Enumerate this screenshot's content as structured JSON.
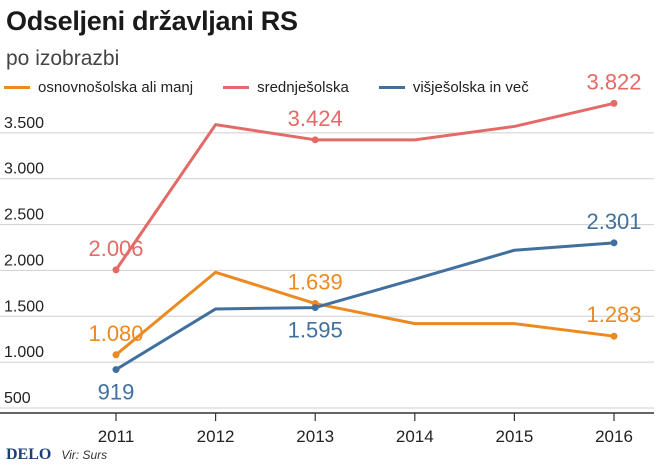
{
  "header": {
    "title": "Odseljeni državljani RS",
    "subtitle": "po izobrazbi"
  },
  "footer": {
    "brand": "DELO",
    "source": "Vir: Surs"
  },
  "chart_data": {
    "type": "line",
    "title": "Odseljeni državljani RS",
    "subtitle": "po izobrazbi",
    "xlabel": "",
    "ylabel": "",
    "categories": [
      "2011",
      "2012",
      "2013",
      "2014",
      "2015",
      "2016"
    ],
    "ylim": [
      500,
      4000
    ],
    "yticks": [
      500,
      1000,
      1500,
      2000,
      2500,
      3000,
      3500
    ],
    "ytick_labels": [
      "500",
      "1.000",
      "1.500",
      "2.000",
      "2.500",
      "3.000",
      "3.500"
    ],
    "grid": true,
    "legend_position": "top-left",
    "series": [
      {
        "name": "osnovnošolska ali manj",
        "color": "#ec8a22",
        "values": [
          1080,
          1980,
          1639,
          1420,
          1420,
          1283
        ],
        "labels": [
          {
            "index": 0,
            "text": "1.080",
            "position": "above"
          },
          {
            "index": 2,
            "text": "1.639",
            "position": "above"
          },
          {
            "index": 5,
            "text": "1.283",
            "position": "above"
          }
        ]
      },
      {
        "name": "srednješolska",
        "color": "#e36a66",
        "values": [
          2006,
          3590,
          3424,
          3424,
          3570,
          3822
        ],
        "labels": [
          {
            "index": 0,
            "text": "2.006",
            "position": "above"
          },
          {
            "index": 2,
            "text": "3.424",
            "position": "above"
          },
          {
            "index": 5,
            "text": "3.822",
            "position": "above"
          }
        ]
      },
      {
        "name": "višješolska in več",
        "color": "#41709f",
        "values": [
          919,
          1580,
          1595,
          1905,
          2220,
          2301
        ],
        "labels": [
          {
            "index": 0,
            "text": "919",
            "position": "below"
          },
          {
            "index": 2,
            "text": "1.595",
            "position": "below"
          },
          {
            "index": 5,
            "text": "2.301",
            "position": "above"
          }
        ]
      }
    ]
  }
}
